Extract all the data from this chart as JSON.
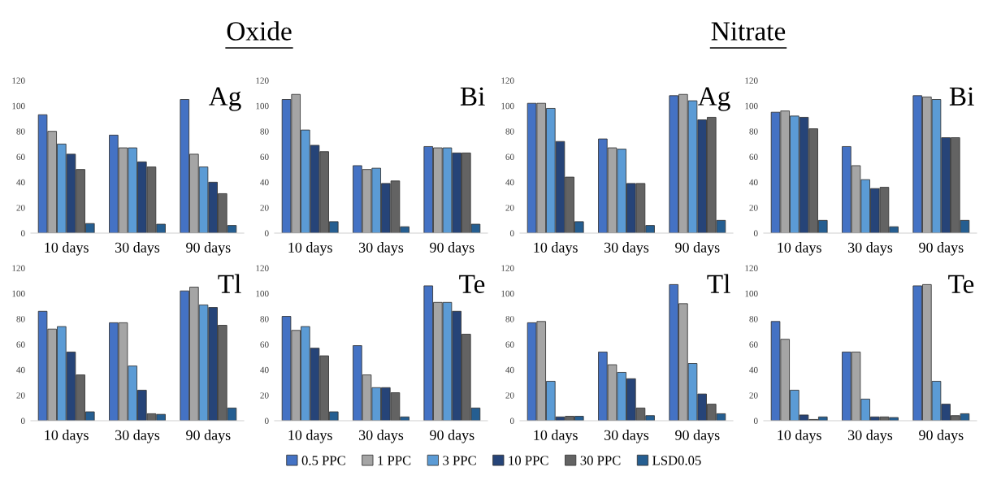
{
  "chart_data": [
    {
      "type": "bar",
      "title": "Ag",
      "annotations": [
        "Oxide"
      ],
      "legend": "bottom",
      "categories": [
        "10 days",
        "30 days",
        "90 days"
      ],
      "ylim": [
        0,
        120
      ],
      "yticks": [
        0,
        20,
        40,
        60,
        80,
        100,
        120
      ],
      "series": [
        {
          "name": "0.5 PPC",
          "color": "#4472c4",
          "values": [
            93,
            77,
            105
          ]
        },
        {
          "name": "1 PPC",
          "color": "#a5a5a5",
          "values": [
            80,
            67,
            62
          ]
        },
        {
          "name": "3 PPC",
          "color": "#5b9bd5",
          "values": [
            70,
            67,
            52
          ]
        },
        {
          "name": "10 PPC",
          "color": "#264478",
          "values": [
            62,
            56,
            40
          ]
        },
        {
          "name": "30 PPC",
          "color": "#636363",
          "values": [
            50,
            52,
            31
          ]
        },
        {
          "name": "LSD0.05",
          "color": "#255e91",
          "values": [
            7.5,
            7,
            6
          ]
        }
      ]
    },
    {
      "type": "bar",
      "title": "Bi",
      "categories": [
        "10 days",
        "30 days",
        "90 days"
      ],
      "ylim": [
        0,
        120
      ],
      "yticks": [
        0,
        20,
        40,
        60,
        80,
        100,
        120
      ],
      "series": [
        {
          "name": "0.5 PPC",
          "color": "#4472c4",
          "values": [
            105,
            53,
            68
          ]
        },
        {
          "name": "1 PPC",
          "color": "#a5a5a5",
          "values": [
            109,
            50,
            67
          ]
        },
        {
          "name": "3 PPC",
          "color": "#5b9bd5",
          "values": [
            81,
            51,
            67
          ]
        },
        {
          "name": "10 PPC",
          "color": "#264478",
          "values": [
            69,
            39,
            63
          ]
        },
        {
          "name": "30 PPC",
          "color": "#636363",
          "values": [
            64,
            41,
            63
          ]
        },
        {
          "name": "LSD0.05",
          "color": "#255e91",
          "values": [
            9,
            5,
            7
          ]
        }
      ]
    },
    {
      "type": "bar",
      "title": "Ag",
      "annotations": [
        "Nitrate"
      ],
      "categories": [
        "10 days",
        "30 days",
        "90 days"
      ],
      "ylim": [
        0,
        120
      ],
      "yticks": [
        0,
        20,
        40,
        60,
        80,
        100,
        120
      ],
      "series": [
        {
          "name": "0.5 PPC",
          "color": "#4472c4",
          "values": [
            102,
            74,
            108
          ]
        },
        {
          "name": "1 PPC",
          "color": "#a5a5a5",
          "values": [
            102,
            67,
            109
          ]
        },
        {
          "name": "3 PPC",
          "color": "#5b9bd5",
          "values": [
            98,
            66,
            104
          ]
        },
        {
          "name": "10 PPC",
          "color": "#264478",
          "values": [
            72,
            39,
            89
          ]
        },
        {
          "name": "30 PPC",
          "color": "#636363",
          "values": [
            44,
            39,
            91
          ]
        },
        {
          "name": "LSD0.05",
          "color": "#255e91",
          "values": [
            9,
            6,
            10
          ]
        }
      ]
    },
    {
      "type": "bar",
      "title": "Bi",
      "categories": [
        "10 days",
        "30 days",
        "90 days"
      ],
      "ylim": [
        0,
        120
      ],
      "yticks": [
        0,
        20,
        40,
        60,
        80,
        100,
        120
      ],
      "series": [
        {
          "name": "0.5 PPC",
          "color": "#4472c4",
          "values": [
            95,
            68,
            108
          ]
        },
        {
          "name": "1 PPC",
          "color": "#a5a5a5",
          "values": [
            96,
            53,
            107
          ]
        },
        {
          "name": "3 PPC",
          "color": "#5b9bd5",
          "values": [
            92,
            42,
            105
          ]
        },
        {
          "name": "10 PPC",
          "color": "#264478",
          "values": [
            91,
            35,
            75
          ]
        },
        {
          "name": "30 PPC",
          "color": "#636363",
          "values": [
            82,
            36,
            75
          ]
        },
        {
          "name": "LSD0.05",
          "color": "#255e91",
          "values": [
            10,
            5,
            10
          ]
        }
      ]
    },
    {
      "type": "bar",
      "title": "Tl",
      "categories": [
        "10 days",
        "30 days",
        "90 days"
      ],
      "ylim": [
        0,
        120
      ],
      "yticks": [
        0,
        20,
        40,
        60,
        80,
        100,
        120
      ],
      "series": [
        {
          "name": "0.5 PPC",
          "color": "#4472c4",
          "values": [
            86,
            77,
            102
          ]
        },
        {
          "name": "1 PPC",
          "color": "#a5a5a5",
          "values": [
            72,
            77,
            105
          ]
        },
        {
          "name": "3 PPC",
          "color": "#5b9bd5",
          "values": [
            74,
            43,
            91
          ]
        },
        {
          "name": "10 PPC",
          "color": "#264478",
          "values": [
            54,
            24,
            89
          ]
        },
        {
          "name": "30 PPC",
          "color": "#636363",
          "values": [
            36,
            5.5,
            75
          ]
        },
        {
          "name": "LSD0.05",
          "color": "#255e91",
          "values": [
            7,
            5,
            10
          ]
        }
      ]
    },
    {
      "type": "bar",
      "title": "Te",
      "categories": [
        "10 days",
        "30 days",
        "90 days"
      ],
      "ylim": [
        0,
        120
      ],
      "yticks": [
        0,
        20,
        40,
        60,
        80,
        100,
        120
      ],
      "series": [
        {
          "name": "0.5 PPC",
          "color": "#4472c4",
          "values": [
            82,
            59,
            106
          ]
        },
        {
          "name": "1 PPC",
          "color": "#a5a5a5",
          "values": [
            71,
            36,
            93
          ]
        },
        {
          "name": "3 PPC",
          "color": "#5b9bd5",
          "values": [
            74,
            26,
            93
          ]
        },
        {
          "name": "10 PPC",
          "color": "#264478",
          "values": [
            57,
            26,
            86
          ]
        },
        {
          "name": "30 PPC",
          "color": "#636363",
          "values": [
            51,
            22,
            68
          ]
        },
        {
          "name": "LSD0.05",
          "color": "#255e91",
          "values": [
            7,
            3,
            10
          ]
        }
      ]
    },
    {
      "type": "bar",
      "title": "Tl",
      "categories": [
        "10 days",
        "30 days",
        "90 days"
      ],
      "ylim": [
        0,
        120
      ],
      "yticks": [
        0,
        20,
        40,
        60,
        80,
        100,
        120
      ],
      "series": [
        {
          "name": "0.5 PPC",
          "color": "#4472c4",
          "values": [
            77,
            54,
            107
          ]
        },
        {
          "name": "1 PPC",
          "color": "#a5a5a5",
          "values": [
            78,
            44,
            92
          ]
        },
        {
          "name": "3 PPC",
          "color": "#5b9bd5",
          "values": [
            31,
            38,
            45
          ]
        },
        {
          "name": "10 PPC",
          "color": "#264478",
          "values": [
            3,
            33,
            21
          ]
        },
        {
          "name": "30 PPC",
          "color": "#636363",
          "values": [
            3.5,
            10,
            13
          ]
        },
        {
          "name": "LSD0.05",
          "color": "#255e91",
          "values": [
            3.5,
            4,
            5.5
          ]
        }
      ]
    },
    {
      "type": "bar",
      "title": "Te",
      "categories": [
        "10 days",
        "30 days",
        "90 days"
      ],
      "ylim": [
        0,
        120
      ],
      "yticks": [
        0,
        20,
        40,
        60,
        80,
        100,
        120
      ],
      "series": [
        {
          "name": "0.5 PPC",
          "color": "#4472c4",
          "values": [
            78,
            54,
            106
          ]
        },
        {
          "name": "1 PPC",
          "color": "#a5a5a5",
          "values": [
            64,
            54,
            107
          ]
        },
        {
          "name": "3 PPC",
          "color": "#5b9bd5",
          "values": [
            24,
            17,
            31
          ]
        },
        {
          "name": "10 PPC",
          "color": "#264478",
          "values": [
            4.5,
            3,
            13
          ]
        },
        {
          "name": "30 PPC",
          "color": "#636363",
          "values": [
            1,
            3,
            4
          ]
        },
        {
          "name": "LSD0.05",
          "color": "#255e91",
          "values": [
            3,
            2.5,
            5.5
          ]
        }
      ]
    }
  ]
}
